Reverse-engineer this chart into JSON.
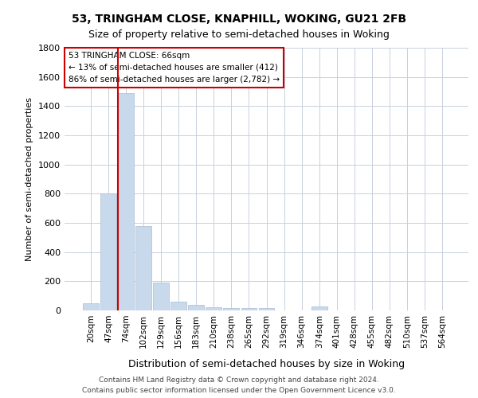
{
  "title1": "53, TRINGHAM CLOSE, KNAPHILL, WOKING, GU21 2FB",
  "title2": "Size of property relative to semi-detached houses in Woking",
  "xlabel": "Distribution of semi-detached houses by size in Woking",
  "ylabel": "Number of semi-detached properties",
  "annotation_title": "53 TRINGHAM CLOSE: 66sqm",
  "annotation_line1": "← 13% of semi-detached houses are smaller (412)",
  "annotation_line2": "86% of semi-detached houses are larger (2,782) →",
  "footer1": "Contains HM Land Registry data © Crown copyright and database right 2024.",
  "footer2": "Contains public sector information licensed under the Open Government Licence v3.0.",
  "categories": [
    "20sqm",
    "47sqm",
    "74sqm",
    "102sqm",
    "129sqm",
    "156sqm",
    "183sqm",
    "210sqm",
    "238sqm",
    "265sqm",
    "292sqm",
    "319sqm",
    "346sqm",
    "374sqm",
    "401sqm",
    "428sqm",
    "455sqm",
    "482sqm",
    "510sqm",
    "537sqm",
    "564sqm"
  ],
  "values": [
    50,
    800,
    1490,
    580,
    190,
    60,
    40,
    20,
    18,
    18,
    15,
    0,
    0,
    25,
    0,
    0,
    0,
    0,
    0,
    0,
    0
  ],
  "bar_color": "#c9d9ec",
  "bar_edge_color": "#a8bdd4",
  "highlight_line_color": "#cc0000",
  "grid_color": "#c8d0dc",
  "background_color": "#ffffff",
  "ylim": [
    0,
    1800
  ],
  "yticks": [
    0,
    200,
    400,
    600,
    800,
    1000,
    1200,
    1400,
    1600,
    1800
  ],
  "title1_fontsize": 10,
  "title2_fontsize": 9,
  "ylabel_fontsize": 8,
  "xlabel_fontsize": 9,
  "tick_fontsize": 8,
  "xtick_fontsize": 7.5,
  "footer_fontsize": 6.5,
  "annot_fontsize": 7.5
}
